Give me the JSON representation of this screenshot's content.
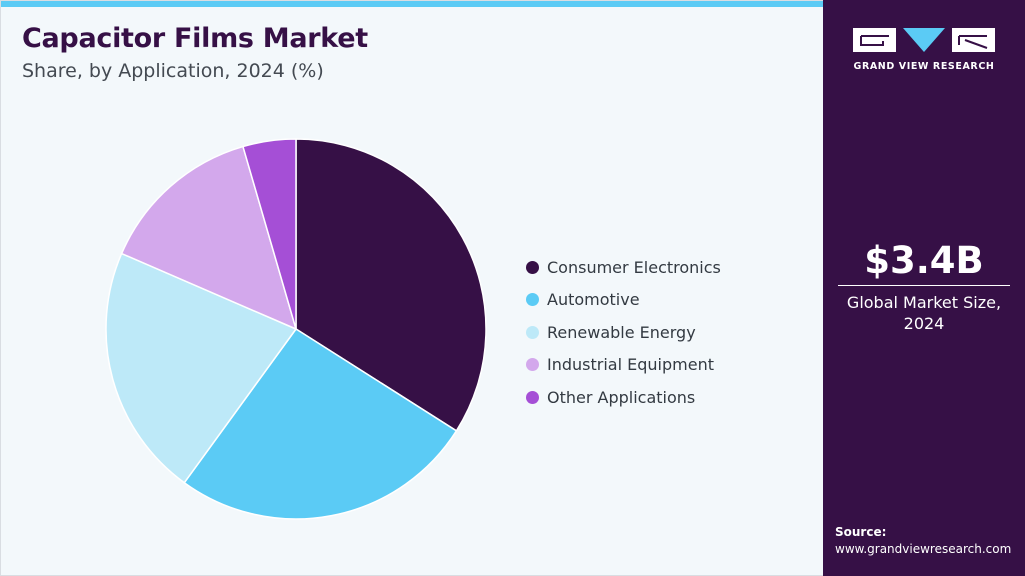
{
  "header": {
    "title": "Capacitor Films Market",
    "subtitle": "Share, by Application, 2024 (%)"
  },
  "chart_data": {
    "type": "pie",
    "categories": [
      "Consumer Electronics",
      "Automotive",
      "Renewable Energy",
      "Industrial Equipment",
      "Other Applications"
    ],
    "values": [
      34,
      26,
      21.5,
      14,
      4.5
    ],
    "colors": [
      "#361046",
      "#5bcbf5",
      "#bde9f8",
      "#d3a8ec",
      "#a54fd6"
    ],
    "start_angle_deg": 0,
    "direction": "clockwise",
    "legend_position": "right"
  },
  "sidebar": {
    "logo_text": "GRAND VIEW RESEARCH",
    "market_value": "$3.4B",
    "market_label_line1": "Global Market Size,",
    "market_label_line2": "2024",
    "source_label": "Source:",
    "source_url": "www.grandviewresearch.com"
  },
  "colors": {
    "brand_dark": "#361046",
    "accent": "#5bcbf5",
    "background": "#f3f8fb"
  }
}
